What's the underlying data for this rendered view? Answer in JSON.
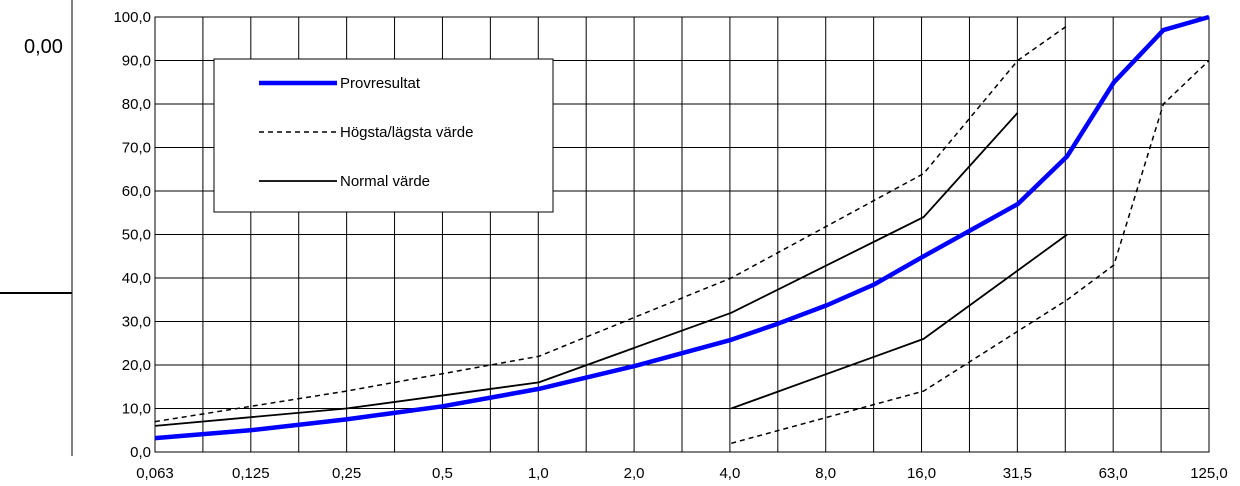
{
  "side_value": "0,00",
  "chart_data": {
    "type": "line",
    "x_ticks": [
      "0,063",
      "0,125",
      "0,25",
      "0,5",
      "1,0",
      "2,0",
      "4,0",
      "8,0",
      "16,0",
      "31,5",
      "63,0",
      "125,0"
    ],
    "y_ticks": [
      "0,0",
      "10,0",
      "20,0",
      "30,0",
      "40,0",
      "50,0",
      "60,0",
      "70,0",
      "80,0",
      "90,0",
      "100,0"
    ],
    "ylim": [
      0,
      100
    ],
    "xscale": "log",
    "grid": true,
    "legend_placement": "top-left",
    "series": [
      {
        "name": "Provresultat",
        "style": "thick-blue",
        "color": "#0000ff",
        "points": [
          [
            0.063,
            3.2
          ],
          [
            0.125,
            5
          ],
          [
            0.25,
            7.5
          ],
          [
            0.5,
            10.5
          ],
          [
            1.0,
            14.5
          ],
          [
            2.0,
            19.8
          ],
          [
            4.0,
            25.8
          ],
          [
            5.6,
            29.5
          ],
          [
            8.0,
            33.8
          ],
          [
            11.2,
            38.5
          ],
          [
            16.0,
            45
          ],
          [
            31.5,
            57
          ],
          [
            45,
            68
          ],
          [
            63,
            85
          ],
          [
            90,
            97
          ],
          [
            125,
            100
          ]
        ]
      },
      {
        "name": "Högsta/lägsta värde",
        "style": "dashed",
        "color": "#000000",
        "points": [
          [
            0.063,
            7
          ],
          [
            0.25,
            14
          ],
          [
            1.0,
            22
          ],
          [
            4.0,
            40
          ],
          [
            16.0,
            64
          ],
          [
            31.5,
            90
          ],
          [
            45,
            98
          ]
        ]
      },
      {
        "name": "",
        "style": "dashed",
        "color": "#000000",
        "points": [
          [
            4.0,
            2
          ],
          [
            16.0,
            14
          ],
          [
            45,
            35
          ],
          [
            63,
            43
          ],
          [
            90,
            80
          ],
          [
            125,
            90
          ]
        ]
      },
      {
        "name": "Normal värde",
        "style": "solid",
        "color": "#000000",
        "points": [
          [
            0.063,
            6
          ],
          [
            0.25,
            10
          ],
          [
            1.0,
            16
          ],
          [
            4.0,
            32
          ],
          [
            16.0,
            54
          ],
          [
            31.5,
            78
          ]
        ]
      },
      {
        "name": "",
        "style": "solid",
        "color": "#000000",
        "points": [
          [
            4.0,
            10
          ],
          [
            16.0,
            26
          ],
          [
            45,
            50
          ]
        ]
      }
    ],
    "legend": [
      {
        "label": "Provresultat",
        "style": "thick-blue"
      },
      {
        "label": "Högsta/lägsta värde",
        "style": "dashed"
      },
      {
        "label": "Normal värde",
        "style": "solid"
      }
    ]
  }
}
